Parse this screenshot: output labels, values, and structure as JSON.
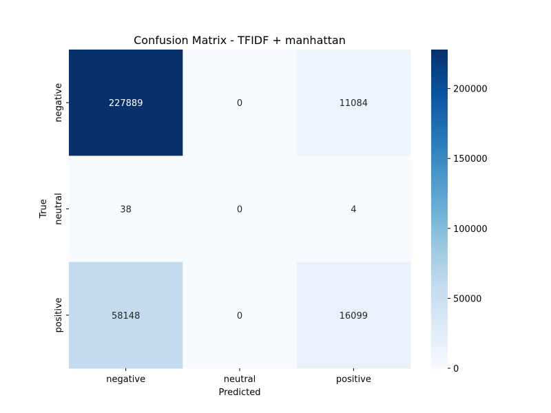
{
  "chart_data": {
    "type": "heatmap",
    "title": "Confusion Matrix - TFIDF + manhattan",
    "xlabel": "Predicted",
    "ylabel": "True",
    "x_categories": [
      "negative",
      "neutral",
      "positive"
    ],
    "y_categories": [
      "negative",
      "neutral",
      "positive"
    ],
    "values": [
      [
        227889,
        0,
        11084
      ],
      [
        38,
        0,
        4
      ],
      [
        58148,
        0,
        16099
      ]
    ],
    "colormap": "Blues",
    "colorbar": {
      "range": [
        0,
        227889
      ],
      "ticks": [
        0,
        50000,
        100000,
        150000,
        200000
      ],
      "tick_labels": [
        "0",
        "50000",
        "100000",
        "150000",
        "200000"
      ]
    }
  }
}
